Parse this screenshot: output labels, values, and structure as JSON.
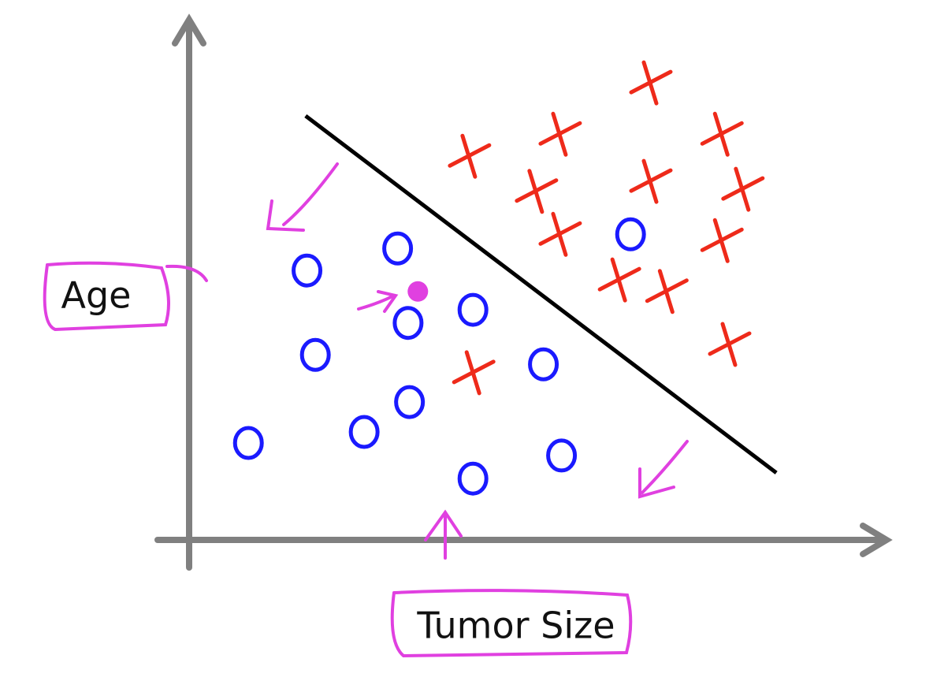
{
  "chart_data": {
    "type": "scatter",
    "x_label": "Tumor Size",
    "y_label": "Age",
    "xlim": [
      0,
      100
    ],
    "ylim": [
      0,
      100
    ],
    "series": [
      {
        "color": "#1a1aff",
        "marker": "o",
        "x": [
          16.9,
          29.9,
          31.4,
          40.7,
          18.1,
          31.6,
          25.1,
          8.5,
          40.7,
          53.4,
          50.8,
          63.3
        ],
        "values": [
          51.4,
          55.6,
          41.4,
          43.9,
          35.3,
          26.3,
          20.6,
          18.5,
          11.7,
          16.1,
          33.5,
          58.3
        ]
      },
      {
        "color": "#ee2a1a",
        "marker": "x",
        "x": [
          40.1,
          53.1,
          66.1,
          76.3,
          49.7,
          66.1,
          79.3,
          53.1,
          76.3,
          61.6,
          68.4,
          77.4,
          40.7
        ],
        "values": [
          73.2,
          77.4,
          87.2,
          77.4,
          66.5,
          68.4,
          66.9,
          58.3,
          57.1,
          49.6,
          47.4,
          37.3,
          31.9
        ]
      },
      {
        "color": "#e040e0",
        "marker": "dot",
        "x": [
          32.8
        ],
        "values": [
          47.4
        ]
      },
      {
        "color": "#000000",
        "marker": "line",
        "x": [
          16.7,
          84.2
        ],
        "values": [
          80.9,
          12.8
        ]
      }
    ]
  }
}
